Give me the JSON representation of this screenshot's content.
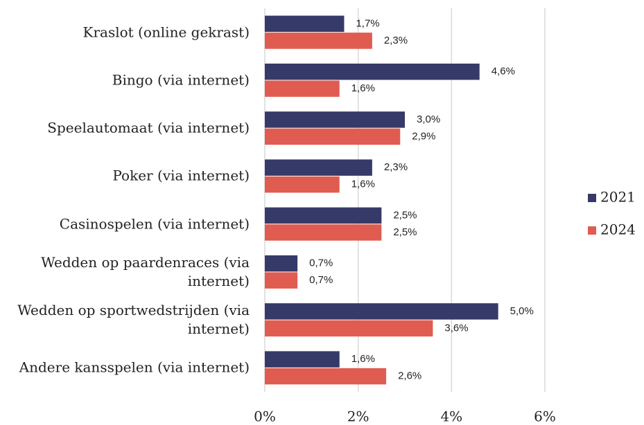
{
  "chart_data": {
    "type": "barh",
    "categories": [
      "Kraslot (online gekrast)",
      "Bingo (via internet)",
      "Speelautomaat (via internet)",
      "Poker (via internet)",
      "Casinospelen (via internet)",
      "Wedden op paardenraces (via internet)",
      "Wedden op sportwedstrijden (via internet)",
      "Andere kansspelen (via internet)"
    ],
    "series": [
      {
        "name": "2021",
        "color": "#353a68",
        "values": [
          1.7,
          4.6,
          3.0,
          2.3,
          2.5,
          0.7,
          5.0,
          1.6
        ],
        "value_labels": [
          "1,7%",
          "4,6%",
          "3,0%",
          "2,3%",
          "2,5%",
          "0,7%",
          "5,0%",
          "1,6%"
        ]
      },
      {
        "name": "2024",
        "color": "#e05c50",
        "values": [
          2.3,
          1.6,
          2.9,
          1.6,
          2.5,
          0.7,
          3.6,
          2.6
        ],
        "value_labels": [
          "2,3%",
          "1,6%",
          "2,9%",
          "1,6%",
          "2,5%",
          "0,7%",
          "3,6%",
          "2,6%"
        ]
      }
    ],
    "xlim": [
      0,
      6
    ],
    "xticks": [
      {
        "value": 0,
        "label": "0%"
      },
      {
        "value": 2,
        "label": "2%"
      },
      {
        "value": 4,
        "label": "4%"
      },
      {
        "value": 6,
        "label": "6%"
      }
    ],
    "grid": true,
    "legend": "right"
  }
}
